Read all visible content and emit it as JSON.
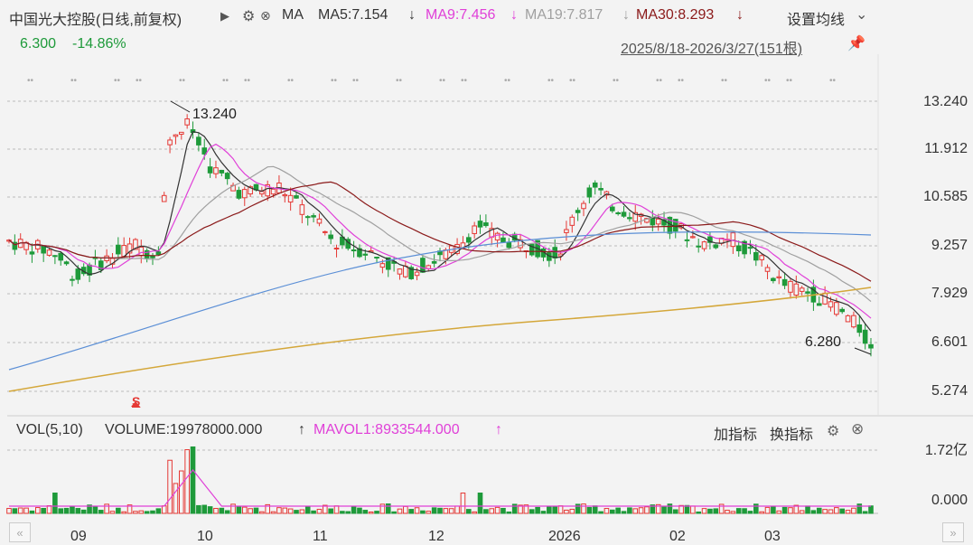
{
  "header": {
    "stock_title": "中国光大控股(日线,前复权)",
    "play_icon": "play-triangle-icon",
    "ma_label": "MA",
    "ma5": "MA5:7.154",
    "ma9": "MA9:7.456",
    "ma19": "MA19:7.817",
    "ma30": "MA30:8.293",
    "arrow": "↓",
    "settings": "设置均线",
    "settings_chevron": "⌄"
  },
  "subheader": {
    "price": "6.300",
    "change": "-14.86%",
    "range": "2025/8/18-2026/3/27(151根)"
  },
  "price_axis": [
    "13.240",
    "11.912",
    "10.585",
    "9.257",
    "7.929",
    "6.601",
    "5.274"
  ],
  "annotations": {
    "high": "13.240",
    "low": "6.280",
    "signal": "S"
  },
  "volume_header": {
    "vol_label": "VOL(5,10)",
    "volume": "VOLUME:19978000.000",
    "mavol": "MAVOL1:8933544.000",
    "up_arrow": "↑",
    "add_indicator": "加指标",
    "switch_indicator": "换指标"
  },
  "volume_axis": [
    "1.72亿",
    "0.000"
  ],
  "x_axis": [
    "09",
    "10",
    "11",
    "12",
    "2026",
    "02",
    "03"
  ],
  "nav": {
    "left": "«",
    "right": "»"
  },
  "colors": {
    "up": "#e53935",
    "down": "#1e9a3a",
    "ma5": "#333333",
    "ma9": "#e040d8",
    "ma19": "#a0a0a0",
    "ma30": "#8b1a1a",
    "ma_long1": "#5b8fd6",
    "ma_long2": "#d4a73a"
  }
}
